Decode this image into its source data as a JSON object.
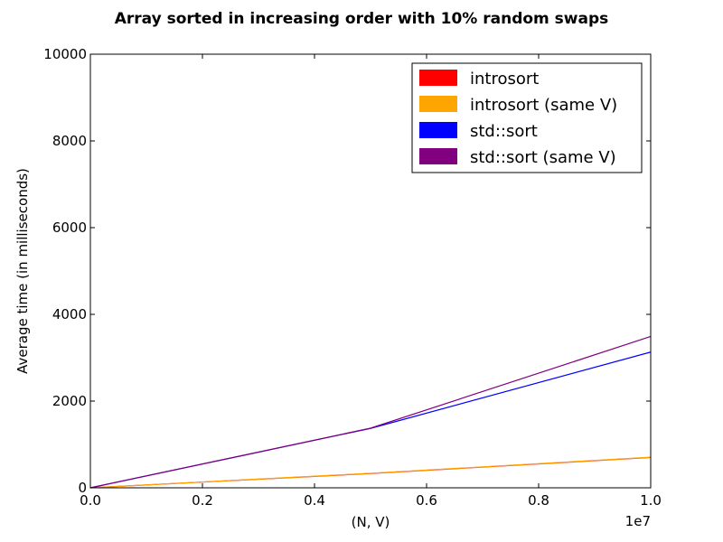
{
  "chart_data": {
    "type": "line",
    "title": "Array sorted in increasing order with 10% random swaps",
    "xlabel": "(N, V)",
    "ylabel": "Average time (in milliseconds)",
    "x_offset_text": "1e7",
    "xlim": [
      0,
      1.0
    ],
    "ylim": [
      0,
      10000
    ],
    "x_ticks": [
      0.0,
      0.2,
      0.4,
      0.6,
      0.8,
      1.0
    ],
    "x_tick_labels": [
      "0.0",
      "0.2",
      "0.4",
      "0.6",
      "0.8",
      "1.0"
    ],
    "y_ticks": [
      0,
      2000,
      4000,
      6000,
      8000,
      10000
    ],
    "y_tick_labels": [
      "0",
      "2000",
      "4000",
      "6000",
      "8000",
      "10000"
    ],
    "grid": false,
    "legend_position": "top-right",
    "series": [
      {
        "name": "introsort",
        "color": "#ff0000",
        "x": [
          0,
          0.5,
          1.0
        ],
        "values": [
          0,
          330,
          700
        ]
      },
      {
        "name": "introsort (same V)",
        "color": "#ffa500",
        "x": [
          0,
          0.5,
          1.0
        ],
        "values": [
          0,
          335,
          705
        ]
      },
      {
        "name": "std::sort",
        "color": "#0000ff",
        "x": [
          0,
          0.5,
          1.0
        ],
        "values": [
          0,
          1370,
          3130
        ]
      },
      {
        "name": "std::sort (same V)",
        "color": "#800080",
        "x": [
          0,
          0.5,
          1.0
        ],
        "values": [
          0,
          1375,
          3490
        ]
      }
    ]
  }
}
